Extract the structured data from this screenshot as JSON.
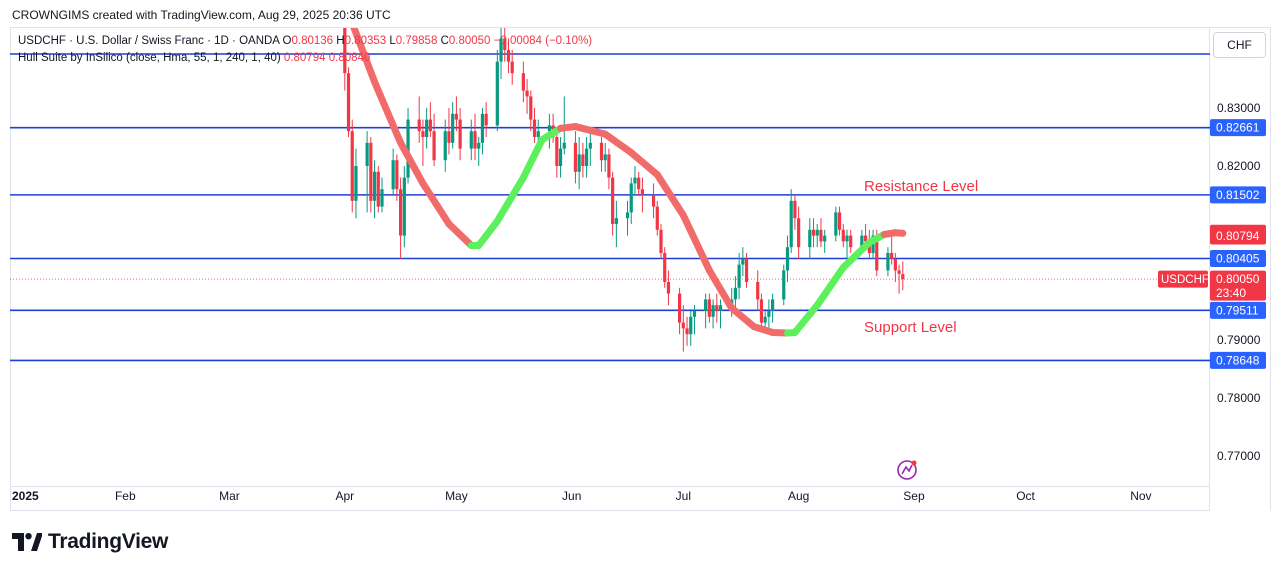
{
  "attribution": "CROWNGIMS created with TradingView.com, Aug 29, 2025 20:36 UTC",
  "currency": "CHF",
  "legend": {
    "symbol_info": "USDCHF · U.S. Dollar / Swiss Franc · 1D · OANDA",
    "open_label": "O",
    "open_value": "0.80136",
    "high_label": "H",
    "high_value": "0.80353",
    "low_label": "L",
    "low_value": "0.79858",
    "close_label": "C",
    "close_value": "0.80050",
    "change": "−0.00084 (−0.10%)",
    "indicator": "Hull Suite by InSilico (close, Hma, 55, 1, 240, 1, 40)",
    "indicator_v1": "0.80794",
    "indicator_v2": "0.80840"
  },
  "annotations": {
    "resistance": "Resistance Level",
    "support": "Support Level"
  },
  "logo_text": "TradingView",
  "colors": {
    "level_line": "#1e3fd8",
    "up": "#089981",
    "down": "#f23645",
    "hull_up": "#5cf05c",
    "hull_down": "#f26b6b",
    "label_red": "#f23645",
    "label_blue": "#2962ff"
  },
  "chart_data": {
    "type": "candlestick",
    "symbol": "USDCHF",
    "price_ticks": [
      "0.83000",
      "0.82000",
      "0.79000",
      "0.78000",
      "0.77000"
    ],
    "time_ticks": [
      "2025",
      "Feb",
      "Mar",
      "Apr",
      "May",
      "Jun",
      "Jul",
      "Aug",
      "Sep",
      "Oct",
      "Nov"
    ],
    "horizontal_levels": [
      0.83931,
      0.82661,
      0.81502,
      0.80405,
      0.79511,
      0.78648
    ],
    "level_labels": [
      "0.82661",
      "0.81502",
      "0.80405",
      "0.79511",
      "0.78648"
    ],
    "current_price": {
      "label": "USDCHF",
      "value": "0.80050",
      "countdown": "23:40"
    },
    "hull_labels": [
      "0.80840",
      "0.80794"
    ],
    "ylim": [
      0.765,
      0.845
    ],
    "hull_points": [
      [
        "2025-04-01",
        0.848,
        "down"
      ],
      [
        "2025-04-09",
        0.8345,
        "down"
      ],
      [
        "2025-04-16",
        0.824,
        "down"
      ],
      [
        "2025-04-22",
        0.817,
        "down"
      ],
      [
        "2025-04-29",
        0.81,
        "down"
      ],
      [
        "2025-05-05",
        0.8063,
        "down"
      ],
      [
        "2025-05-07",
        0.8063,
        "up"
      ],
      [
        "2025-05-12",
        0.8105,
        "up"
      ],
      [
        "2025-05-19",
        0.818,
        "up"
      ],
      [
        "2025-05-24",
        0.8245,
        "up"
      ],
      [
        "2025-05-29",
        0.8265,
        "up"
      ],
      [
        "2025-06-02",
        0.8268,
        "down"
      ],
      [
        "2025-06-10",
        0.8255,
        "down"
      ],
      [
        "2025-06-17",
        0.8223,
        "down"
      ],
      [
        "2025-06-24",
        0.8185,
        "down"
      ],
      [
        "2025-07-01",
        0.8115,
        "down"
      ],
      [
        "2025-07-08",
        0.802,
        "down"
      ],
      [
        "2025-07-14",
        0.7955,
        "down"
      ],
      [
        "2025-07-20",
        0.7923,
        "down"
      ],
      [
        "2025-07-25",
        0.7913,
        "down"
      ],
      [
        "2025-07-29",
        0.7912,
        "down"
      ],
      [
        "2025-07-31",
        0.7913,
        "up"
      ],
      [
        "2025-08-06",
        0.796,
        "up"
      ],
      [
        "2025-08-13",
        0.8025,
        "up"
      ],
      [
        "2025-08-20",
        0.8068,
        "up"
      ],
      [
        "2025-08-24",
        0.8082,
        "up"
      ],
      [
        "2025-08-27",
        0.8085,
        "down"
      ],
      [
        "2025-08-29",
        0.8084,
        "down"
      ]
    ],
    "candles": [
      [
        "2025-04-01",
        0.847,
        0.849,
        0.833,
        0.836
      ],
      [
        "2025-04-02",
        0.836,
        0.837,
        0.825,
        0.826
      ],
      [
        "2025-04-03",
        0.826,
        0.828,
        0.812,
        0.814
      ],
      [
        "2025-04-04",
        0.814,
        0.823,
        0.811,
        0.82
      ],
      [
        "2025-04-07",
        0.82,
        0.826,
        0.812,
        0.824
      ],
      [
        "2025-04-08",
        0.824,
        0.825,
        0.812,
        0.814
      ],
      [
        "2025-04-09",
        0.814,
        0.821,
        0.811,
        0.819
      ],
      [
        "2025-04-10",
        0.819,
        0.82,
        0.812,
        0.813
      ],
      [
        "2025-04-11",
        0.813,
        0.818,
        0.812,
        0.816
      ],
      [
        "2025-04-14",
        0.816,
        0.823,
        0.815,
        0.821
      ],
      [
        "2025-04-15",
        0.821,
        0.822,
        0.814,
        0.816
      ],
      [
        "2025-04-16",
        0.816,
        0.818,
        0.804,
        0.808
      ],
      [
        "2025-04-17",
        0.808,
        0.82,
        0.806,
        0.818
      ],
      [
        "2025-04-18",
        0.818,
        0.83,
        0.817,
        0.828
      ],
      [
        "2025-04-21",
        0.828,
        0.832,
        0.824,
        0.826
      ],
      [
        "2025-04-22",
        0.826,
        0.828,
        0.82,
        0.825
      ],
      [
        "2025-04-23",
        0.825,
        0.83,
        0.823,
        0.828
      ],
      [
        "2025-04-24",
        0.828,
        0.831,
        0.825,
        0.826
      ],
      [
        "2025-04-25",
        0.826,
        0.829,
        0.82,
        0.821
      ],
      [
        "2025-04-28",
        0.821,
        0.828,
        0.819,
        0.826
      ],
      [
        "2025-04-29",
        0.826,
        0.83,
        0.822,
        0.824
      ],
      [
        "2025-04-30",
        0.824,
        0.831,
        0.823,
        0.829
      ],
      [
        "2025-05-01",
        0.829,
        0.832,
        0.826,
        0.828
      ],
      [
        "2025-05-02",
        0.828,
        0.83,
        0.821,
        0.823
      ],
      [
        "2025-05-05",
        0.823,
        0.828,
        0.821,
        0.826
      ],
      [
        "2025-05-06",
        0.826,
        0.829,
        0.821,
        0.823
      ],
      [
        "2025-05-07",
        0.823,
        0.825,
        0.82,
        0.824
      ],
      [
        "2025-05-08",
        0.824,
        0.83,
        0.822,
        0.829
      ],
      [
        "2025-05-09",
        0.829,
        0.831,
        0.825,
        0.827
      ],
      [
        "2025-05-12",
        0.827,
        0.84,
        0.826,
        0.838
      ],
      [
        "2025-05-13",
        0.838,
        0.844,
        0.835,
        0.842
      ],
      [
        "2025-05-14",
        0.842,
        0.844,
        0.838,
        0.84
      ],
      [
        "2025-05-15",
        0.84,
        0.842,
        0.836,
        0.838
      ],
      [
        "2025-05-16",
        0.838,
        0.84,
        0.834,
        0.836
      ],
      [
        "2025-05-19",
        0.836,
        0.838,
        0.831,
        0.833
      ],
      [
        "2025-05-20",
        0.833,
        0.835,
        0.829,
        0.832
      ],
      [
        "2025-05-21",
        0.832,
        0.833,
        0.826,
        0.828
      ],
      [
        "2025-05-22",
        0.828,
        0.83,
        0.824,
        0.825
      ],
      [
        "2025-05-23",
        0.825,
        0.828,
        0.822,
        0.826
      ],
      [
        "2025-05-26",
        0.826,
        0.829,
        0.823,
        0.827
      ],
      [
        "2025-05-27",
        0.827,
        0.829,
        0.824,
        0.825
      ],
      [
        "2025-05-28",
        0.825,
        0.826,
        0.818,
        0.82
      ],
      [
        "2025-05-29",
        0.82,
        0.825,
        0.818,
        0.823
      ],
      [
        "2025-05-30",
        0.823,
        0.832,
        0.822,
        0.824
      ],
      [
        "2025-06-02",
        0.824,
        0.826,
        0.817,
        0.819
      ],
      [
        "2025-06-03",
        0.819,
        0.825,
        0.816,
        0.822
      ],
      [
        "2025-06-04",
        0.822,
        0.824,
        0.818,
        0.82
      ],
      [
        "2025-06-05",
        0.82,
        0.825,
        0.818,
        0.823
      ],
      [
        "2025-06-06",
        0.823,
        0.826,
        0.82,
        0.824
      ],
      [
        "2025-06-09",
        0.824,
        0.825,
        0.819,
        0.821
      ],
      [
        "2025-06-10",
        0.821,
        0.824,
        0.819,
        0.822
      ],
      [
        "2025-06-11",
        0.822,
        0.823,
        0.816,
        0.818
      ],
      [
        "2025-06-12",
        0.818,
        0.819,
        0.808,
        0.81
      ],
      [
        "2025-06-13",
        0.81,
        0.814,
        0.806,
        0.811
      ],
      [
        "2025-06-16",
        0.811,
        0.814,
        0.808,
        0.812
      ],
      [
        "2025-06-17",
        0.812,
        0.818,
        0.81,
        0.817
      ],
      [
        "2025-06-18",
        0.817,
        0.82,
        0.815,
        0.818
      ],
      [
        "2025-06-19",
        0.818,
        0.819,
        0.815,
        0.816
      ],
      [
        "2025-06-20",
        0.816,
        0.818,
        0.812,
        0.815
      ],
      [
        "2025-06-23",
        0.815,
        0.817,
        0.811,
        0.813
      ],
      [
        "2025-06-24",
        0.813,
        0.814,
        0.808,
        0.809
      ],
      [
        "2025-06-25",
        0.809,
        0.81,
        0.804,
        0.805
      ],
      [
        "2025-06-26",
        0.805,
        0.806,
        0.799,
        0.8
      ],
      [
        "2025-06-27",
        0.8,
        0.802,
        0.796,
        0.798
      ],
      [
        "2025-06-30",
        0.798,
        0.799,
        0.791,
        0.793
      ],
      [
        "2025-07-01",
        0.793,
        0.796,
        0.788,
        0.792
      ],
      [
        "2025-07-02",
        0.792,
        0.794,
        0.789,
        0.791
      ],
      [
        "2025-07-03",
        0.791,
        0.795,
        0.789,
        0.794
      ],
      [
        "2025-07-04",
        0.794,
        0.796,
        0.791,
        0.795
      ],
      [
        "2025-07-07",
        0.795,
        0.798,
        0.792,
        0.797
      ],
      [
        "2025-07-08",
        0.797,
        0.798,
        0.793,
        0.794
      ],
      [
        "2025-07-09",
        0.794,
        0.797,
        0.792,
        0.796
      ],
      [
        "2025-07-10",
        0.796,
        0.798,
        0.793,
        0.795
      ],
      [
        "2025-07-11",
        0.795,
        0.797,
        0.792,
        0.796
      ],
      [
        "2025-07-14",
        0.796,
        0.799,
        0.794,
        0.797
      ],
      [
        "2025-07-15",
        0.797,
        0.801,
        0.795,
        0.799
      ],
      [
        "2025-07-16",
        0.799,
        0.805,
        0.797,
        0.803
      ],
      [
        "2025-07-17",
        0.803,
        0.806,
        0.801,
        0.804
      ],
      [
        "2025-07-18",
        0.804,
        0.805,
        0.799,
        0.8
      ],
      [
        "2025-07-21",
        0.8,
        0.802,
        0.795,
        0.797
      ],
      [
        "2025-07-22",
        0.797,
        0.798,
        0.792,
        0.793
      ],
      [
        "2025-07-23",
        0.793,
        0.795,
        0.792,
        0.794
      ],
      [
        "2025-07-24",
        0.794,
        0.797,
        0.792,
        0.795
      ],
      [
        "2025-07-25",
        0.795,
        0.798,
        0.793,
        0.797
      ],
      [
        "2025-07-28",
        0.797,
        0.803,
        0.796,
        0.802
      ],
      [
        "2025-07-29",
        0.802,
        0.808,
        0.8,
        0.806
      ],
      [
        "2025-07-30",
        0.806,
        0.816,
        0.805,
        0.814
      ],
      [
        "2025-07-31",
        0.814,
        0.815,
        0.809,
        0.811
      ],
      [
        "2025-08-01",
        0.811,
        0.813,
        0.804,
        0.806
      ],
      [
        "2025-08-04",
        0.806,
        0.811,
        0.804,
        0.809
      ],
      [
        "2025-08-05",
        0.809,
        0.811,
        0.806,
        0.808
      ],
      [
        "2025-08-06",
        0.808,
        0.81,
        0.806,
        0.809
      ],
      [
        "2025-08-07",
        0.809,
        0.811,
        0.806,
        0.807
      ],
      [
        "2025-08-08",
        0.807,
        0.809,
        0.805,
        0.808
      ],
      [
        "2025-08-11",
        0.808,
        0.813,
        0.807,
        0.812
      ],
      [
        "2025-08-12",
        0.812,
        0.813,
        0.808,
        0.809
      ],
      [
        "2025-08-13",
        0.809,
        0.81,
        0.806,
        0.807
      ],
      [
        "2025-08-14",
        0.807,
        0.809,
        0.804,
        0.808
      ],
      [
        "2025-08-15",
        0.808,
        0.809,
        0.805,
        0.806
      ],
      [
        "2025-08-18",
        0.806,
        0.809,
        0.805,
        0.808
      ],
      [
        "2025-08-19",
        0.808,
        0.81,
        0.806,
        0.807
      ],
      [
        "2025-08-20",
        0.807,
        0.809,
        0.804,
        0.805
      ],
      [
        "2025-08-21",
        0.805,
        0.809,
        0.804,
        0.808
      ],
      [
        "2025-08-22",
        0.808,
        0.809,
        0.801,
        0.802
      ],
      [
        "2025-08-25",
        0.802,
        0.806,
        0.801,
        0.805
      ],
      [
        "2025-08-26",
        0.805,
        0.808,
        0.803,
        0.804
      ],
      [
        "2025-08-27",
        0.804,
        0.805,
        0.8,
        0.802
      ],
      [
        "2025-08-28",
        0.802,
        0.803,
        0.798,
        0.8014
      ],
      [
        "2025-08-29",
        0.80136,
        0.80353,
        0.79858,
        0.8005
      ]
    ]
  }
}
